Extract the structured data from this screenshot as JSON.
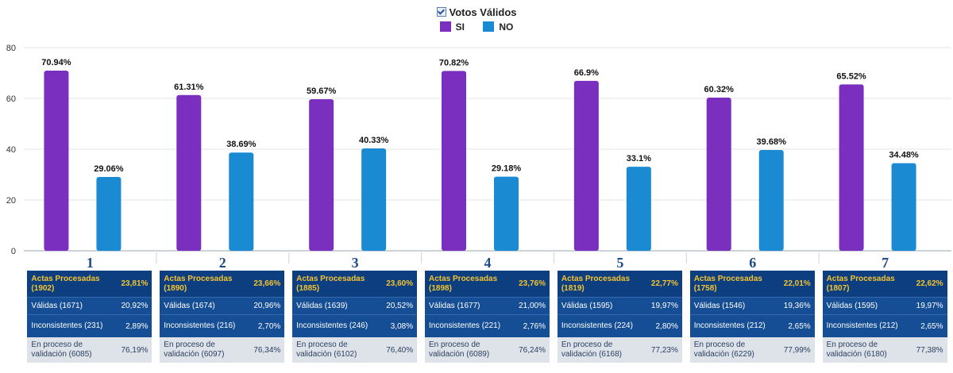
{
  "legend": {
    "title": "Votos Válidos",
    "items": [
      {
        "name": "SI",
        "color": "#7b2fbe"
      },
      {
        "name": "NO",
        "color": "#1a8ad2"
      }
    ]
  },
  "chart_data": {
    "type": "bar",
    "title": "Votos Válidos",
    "categories": [
      "1",
      "2",
      "3",
      "4",
      "5",
      "6",
      "7"
    ],
    "series": [
      {
        "name": "SI",
        "values": [
          70.94,
          61.31,
          59.67,
          70.82,
          66.9,
          60.32,
          65.52
        ],
        "labels": [
          "70.94%",
          "61.31%",
          "59.67%",
          "70.82%",
          "66.9%",
          "60.32%",
          "65.52%"
        ],
        "color": "#7b2fbe"
      },
      {
        "name": "NO",
        "values": [
          29.06,
          38.69,
          40.33,
          29.18,
          33.1,
          39.68,
          34.48
        ],
        "labels": [
          "29.06%",
          "38.69%",
          "40.33%",
          "29.18%",
          "33.1%",
          "39.68%",
          "34.48%"
        ],
        "color": "#1a8ad2"
      }
    ],
    "ylim": [
      0,
      80
    ],
    "yticks": [
      "0",
      "20",
      "40",
      "60",
      "80"
    ],
    "grid": true,
    "legend_position": "top-center"
  },
  "panels": [
    {
      "actas_label": "Actas Procesadas (1902)",
      "actas_pct": "23,81%",
      "validas_label": "Válidas (1671)",
      "validas_pct": "20,92%",
      "incons_label": "Inconsistentes (231)",
      "incons_pct": "2,89%",
      "proceso_label": "En proceso de validación (6085)",
      "proceso_pct": "76,19%"
    },
    {
      "actas_label": "Actas Procesadas (1890)",
      "actas_pct": "23,66%",
      "validas_label": "Válidas (1674)",
      "validas_pct": "20,96%",
      "incons_label": "Inconsistentes (216)",
      "incons_pct": "2,70%",
      "proceso_label": "En proceso de validación (6097)",
      "proceso_pct": "76,34%"
    },
    {
      "actas_label": "Actas Procesadas (1885)",
      "actas_pct": "23,60%",
      "validas_label": "Válidas (1639)",
      "validas_pct": "20,52%",
      "incons_label": "Inconsistentes (246)",
      "incons_pct": "3,08%",
      "proceso_label": "En proceso de validación (6102)",
      "proceso_pct": "76,40%"
    },
    {
      "actas_label": "Actas Procesadas (1898)",
      "actas_pct": "23,76%",
      "validas_label": "Válidas (1677)",
      "validas_pct": "21,00%",
      "incons_label": "Inconsistentes (221)",
      "incons_pct": "2,76%",
      "proceso_label": "En proceso de validación (6089)",
      "proceso_pct": "76,24%"
    },
    {
      "actas_label": "Actas Procesadas (1819)",
      "actas_pct": "22,77%",
      "validas_label": "Válidas (1595)",
      "validas_pct": "19,97%",
      "incons_label": "Inconsistentes (224)",
      "incons_pct": "2,80%",
      "proceso_label": "En proceso de validación (6168)",
      "proceso_pct": "77,23%"
    },
    {
      "actas_label": "Actas Procesadas (1758)",
      "actas_pct": "22,01%",
      "validas_label": "Válidas (1546)",
      "validas_pct": "19,36%",
      "incons_label": "Inconsistentes (212)",
      "incons_pct": "2,65%",
      "proceso_label": "En proceso de validación (6229)",
      "proceso_pct": "77,99%"
    },
    {
      "actas_label": "Actas Procesadas (1807)",
      "actas_pct": "22,62%",
      "validas_label": "Válidas (1595)",
      "validas_pct": "19,97%",
      "incons_label": "Inconsistentes (212)",
      "incons_pct": "2,65%",
      "proceso_label": "En proceso de validación (6180)",
      "proceso_pct": "77,38%"
    }
  ]
}
